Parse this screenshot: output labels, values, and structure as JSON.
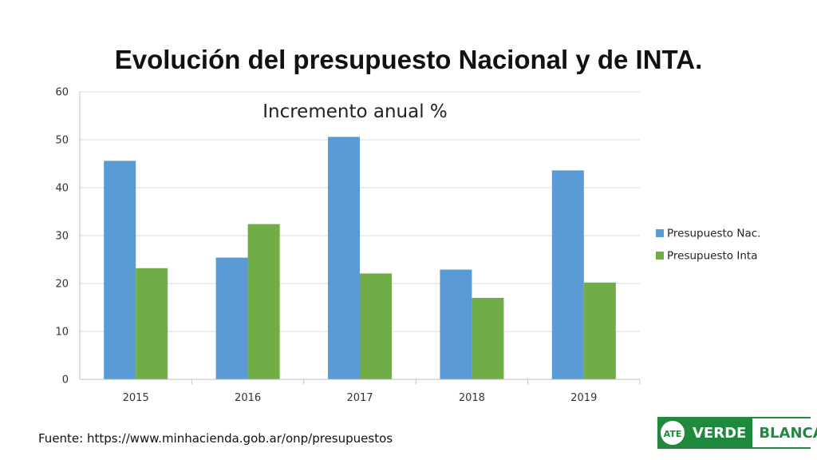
{
  "page": {
    "title": "Evolución del presupuesto Nacional y de INTA.",
    "source": "Fuente: https://www.minhacienda.gob.ar/onp/presupuestos"
  },
  "logo": {
    "badge": "ATE",
    "word1": "VERDE",
    "word2": "BLANCA",
    "color": "#1f8a3e"
  },
  "chart_data": {
    "type": "bar",
    "title": "Incremento anual %",
    "categories": [
      "2015",
      "2016",
      "2017",
      "2018",
      "2019"
    ],
    "series": [
      {
        "name": "Presupuesto Nac.",
        "color": "#5b9bd5",
        "values": [
          45.6,
          25.4,
          50.6,
          22.9,
          43.6
        ]
      },
      {
        "name": "Presupuesto Inta",
        "color": "#70ad47",
        "values": [
          23.2,
          32.4,
          22.1,
          17.0,
          20.2
        ]
      }
    ],
    "ylim": [
      0,
      60
    ],
    "yticks": [
      0,
      10,
      20,
      30,
      40,
      50,
      60
    ],
    "grid": true,
    "legend": "right"
  }
}
